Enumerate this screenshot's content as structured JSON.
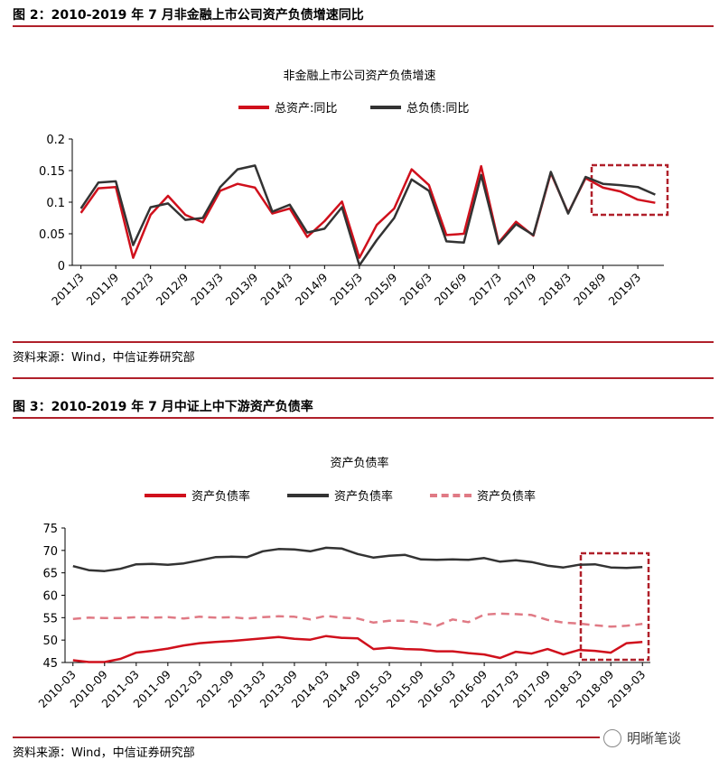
{
  "figures": [
    {
      "caption": "图 2：2010-2019 年 7 月非金融上市公司资产负债增速同比",
      "source": "资料来源：Wind，中信证券研究部"
    },
    {
      "caption": "图 3：2010-2019 年 7 月中证上中下游资产负债率",
      "source": "资料来源：Wind，中信证券研究部"
    }
  ],
  "watermark": "明晰笔谈",
  "chart_data": [
    {
      "type": "line",
      "title": "非金融上市公司资产负债增速",
      "x": [
        "2011/3",
        "2011/6",
        "2011/9",
        "2011/12",
        "2012/3",
        "2012/6",
        "2012/9",
        "2012/12",
        "2013/3",
        "2013/6",
        "2013/9",
        "2013/12",
        "2014/3",
        "2014/6",
        "2014/9",
        "2014/12",
        "2015/3",
        "2015/6",
        "2015/9",
        "2015/12",
        "2016/3",
        "2016/6",
        "2016/9",
        "2016/12",
        "2017/3",
        "2017/6",
        "2017/9",
        "2017/12",
        "2018/3",
        "2018/6",
        "2018/9",
        "2018/12",
        "2019/3",
        "2019/6"
      ],
      "xticks": [
        "2011/3",
        "2011/9",
        "2012/3",
        "2012/9",
        "2013/3",
        "2013/9",
        "2014/3",
        "2014/9",
        "2015/3",
        "2015/9",
        "2016/3",
        "2016/9",
        "2017/3",
        "2017/9",
        "2018/3",
        "2018/9",
        "2019/3"
      ],
      "yticks": [
        "0",
        "0.05",
        "0.1",
        "0.15",
        "0.2"
      ],
      "ylim": [
        0,
        0.2
      ],
      "series": [
        {
          "name": "总资产:同比",
          "color": "#d0101c",
          "values": [
            0.083,
            0.122,
            0.124,
            0.012,
            0.08,
            0.11,
            0.08,
            0.068,
            0.118,
            0.129,
            0.123,
            0.082,
            0.09,
            0.045,
            0.07,
            0.101,
            0.012,
            0.064,
            0.09,
            0.152,
            0.127,
            0.048,
            0.05,
            0.157,
            0.036,
            0.069,
            0.047,
            0.146,
            0.083,
            0.138,
            0.123,
            0.117,
            0.104,
            0.099
          ]
        },
        {
          "name": "总负债:同比",
          "color": "#333333",
          "values": [
            0.09,
            0.131,
            0.133,
            0.032,
            0.092,
            0.098,
            0.072,
            0.075,
            0.124,
            0.152,
            0.158,
            0.085,
            0.096,
            0.052,
            0.058,
            0.092,
            0.0,
            0.04,
            0.075,
            0.136,
            0.118,
            0.038,
            0.036,
            0.143,
            0.034,
            0.065,
            0.048,
            0.148,
            0.082,
            0.14,
            0.129,
            0.127,
            0.124,
            0.112
          ]
        }
      ]
    },
    {
      "type": "line",
      "title": "资产负债率",
      "xticks": [
        "2010-03",
        "2010-09",
        "2011-03",
        "2011-09",
        "2012-03",
        "2012-09",
        "2013-03",
        "2013-09",
        "2014-03",
        "2014-09",
        "2015-03",
        "2015-09",
        "2016-03",
        "2016-09",
        "2017-03",
        "2017-09",
        "2018-03",
        "2018-09",
        "2019-03"
      ],
      "yticks": [
        "45",
        "50",
        "55",
        "60",
        "65",
        "70",
        "75"
      ],
      "ylim": [
        45,
        75
      ],
      "series": [
        {
          "name": "资产负债率",
          "color": "#d0101c",
          "dash": "solid",
          "values": [
            45.5,
            45.1,
            45.1,
            45.8,
            47.2,
            47.6,
            48.1,
            48.8,
            49.3,
            49.6,
            49.8,
            50.1,
            50.4,
            50.7,
            50.3,
            50.1,
            50.9,
            50.5,
            50.4,
            48.0,
            48.3,
            48.0,
            47.9,
            47.5,
            47.5,
            47.1,
            46.8,
            46.0,
            47.4,
            47.0,
            48.0,
            46.8,
            47.8,
            47.6,
            47.2,
            49.3,
            49.6
          ]
        },
        {
          "name": "资产负债率",
          "color": "#333333",
          "dash": "solid",
          "values": [
            66.5,
            65.6,
            65.4,
            65.9,
            66.9,
            67.0,
            66.8,
            67.1,
            67.8,
            68.5,
            68.6,
            68.5,
            69.8,
            70.3,
            70.2,
            69.8,
            70.6,
            70.4,
            69.2,
            68.4,
            68.8,
            69.0,
            68.0,
            67.9,
            68.0,
            67.9,
            68.3,
            67.5,
            67.8,
            67.4,
            66.6,
            66.2,
            66.8,
            66.9,
            66.2,
            66.1,
            66.3
          ]
        },
        {
          "name": "资产负债率",
          "color": "#e07a85",
          "dash": "dashed",
          "values": [
            54.7,
            55.0,
            54.9,
            54.9,
            55.1,
            55.0,
            55.1,
            54.8,
            55.2,
            55.0,
            55.1,
            54.8,
            55.1,
            55.3,
            55.2,
            54.6,
            55.4,
            55.0,
            54.8,
            53.9,
            54.3,
            54.3,
            53.9,
            53.2,
            54.6,
            54.0,
            55.7,
            55.9,
            55.8,
            55.6,
            54.5,
            53.9,
            53.7,
            53.3,
            53.0,
            53.2,
            53.6
          ]
        }
      ]
    }
  ]
}
